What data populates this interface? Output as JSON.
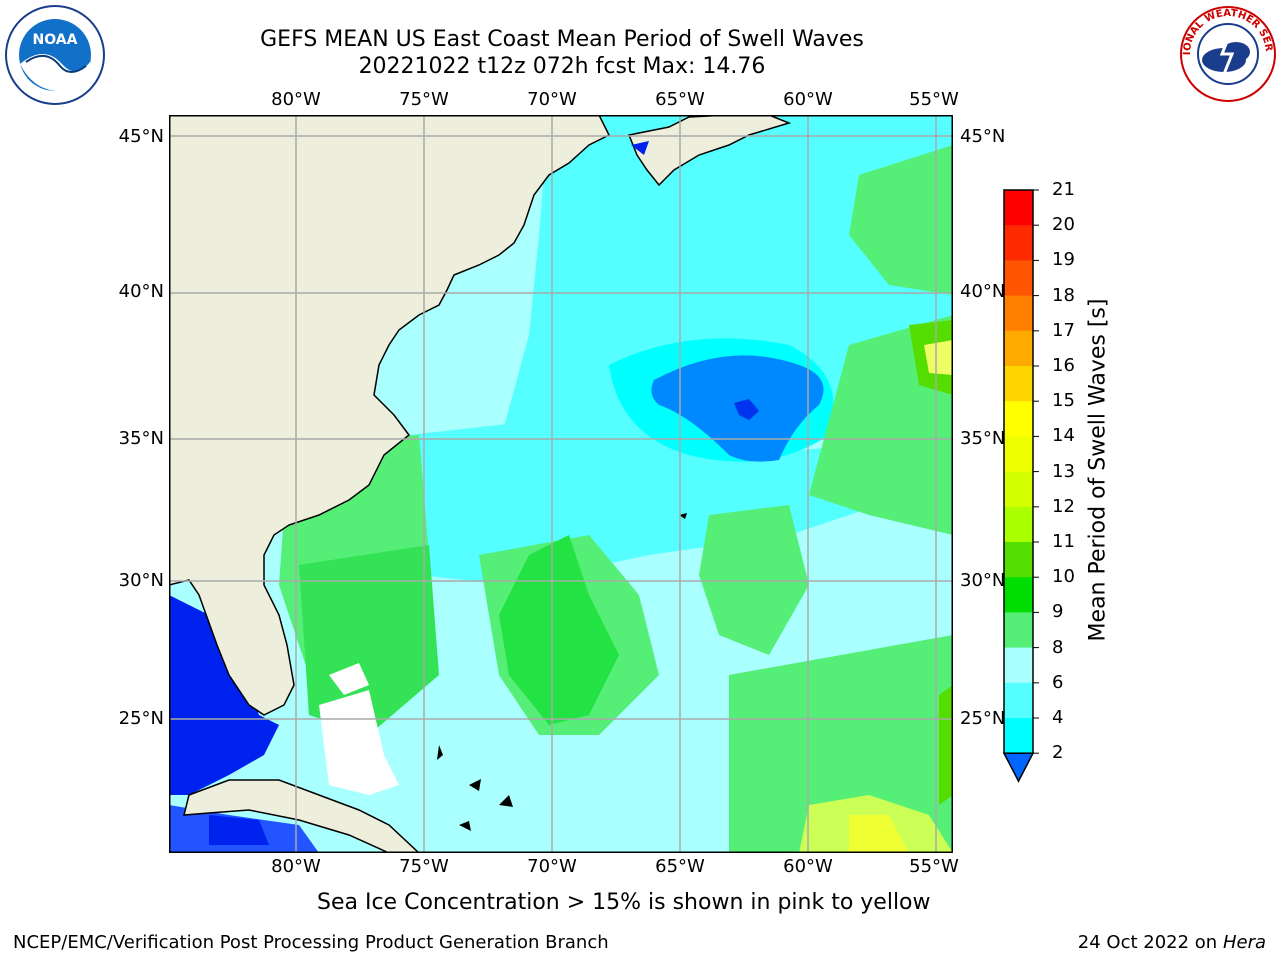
{
  "title": {
    "line1": "GEFS MEAN US East Coast Mean Period of Swell Waves",
    "line2": "20221022 t12z 072h fcst   Max: 14.76"
  },
  "map": {
    "lon_labels": [
      "80°W",
      "75°W",
      "70°W",
      "65°W",
      "60°W",
      "55°W"
    ],
    "lat_labels": [
      "45°N",
      "40°N",
      "35°N",
      "30°N",
      "25°N"
    ],
    "land_color": "#eeeedd",
    "grid_color": "#aaaaaa"
  },
  "colorbar": {
    "label": "Mean Period of Swell Waves [s]",
    "ticks": [
      "21",
      "20",
      "19",
      "18",
      "17",
      "16",
      "15",
      "14",
      "13",
      "12",
      "11",
      "10",
      "9",
      "8",
      "6",
      "4",
      "2"
    ],
    "colors": [
      "#ff0000",
      "#ff2a00",
      "#ff5500",
      "#ff8000",
      "#ffaa00",
      "#ffd500",
      "#ffff00",
      "#eeff00",
      "#d4ff00",
      "#aaff00",
      "#55dd00",
      "#00dd00",
      "#55ee77",
      "#aaffff",
      "#55ffff",
      "#00ffff",
      "#00ccff",
      "#0066ff"
    ]
  },
  "footnote": "Sea Ice Concentration > 15% is shown in pink to yellow",
  "credit_left": "NCEP/EMC/Verification Post Processing Product Generation Branch",
  "credit_date": "24 Oct 2022 on",
  "credit_host": "Hera",
  "logos": {
    "left": "NOAA",
    "right": "NATIONAL WEATHER SERVICE"
  }
}
